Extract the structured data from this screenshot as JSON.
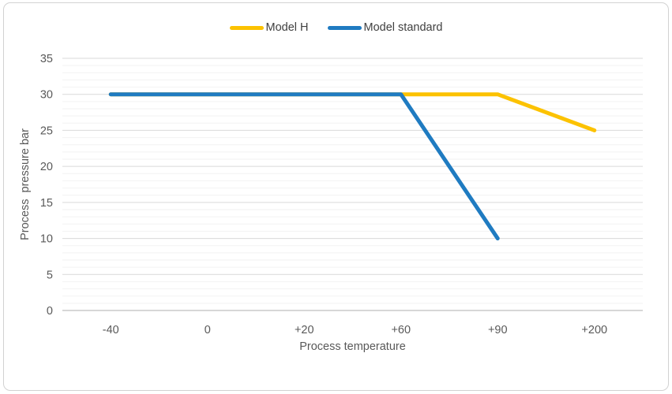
{
  "chart_data": {
    "type": "line",
    "categories": [
      "-40",
      "0",
      "+20",
      "+60",
      "+90",
      "+200"
    ],
    "series": [
      {
        "name": "Model H",
        "color": "#fcc200",
        "values": [
          30,
          30,
          30,
          30,
          30,
          25
        ]
      },
      {
        "name": "Model standard",
        "color": "#1f7bc1",
        "values": [
          30,
          30,
          30,
          30,
          10,
          null
        ]
      }
    ],
    "xlabel": "Process temperature",
    "ylabel": "Process  pressure bar",
    "ylim": [
      0,
      35
    ],
    "y_major_step": 5,
    "y_minor_step": 1,
    "grid": "horizontal-major-and-minor",
    "legend_position": "top-center",
    "colors": {
      "tick_label": "#595959",
      "axis_title": "#595959",
      "legend_text": "#404040",
      "major_gridline": "#d9d9d9",
      "minor_gridline": "#f2f2f2",
      "axis_line": "#bfbfbf"
    }
  }
}
